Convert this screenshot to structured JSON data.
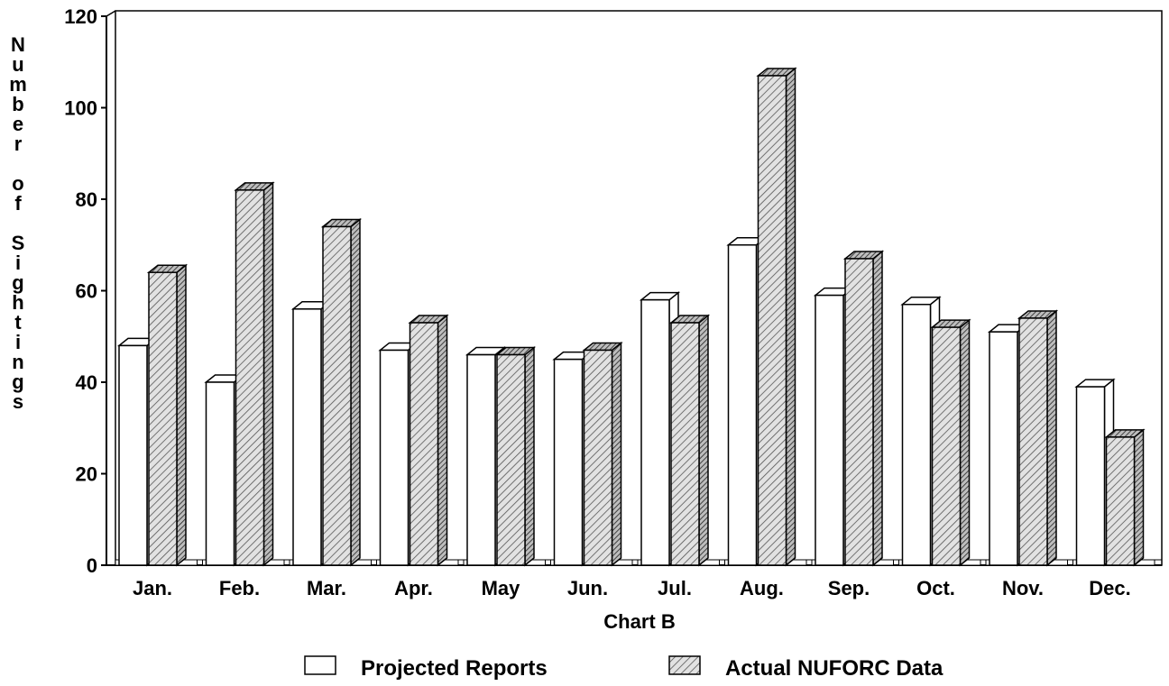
{
  "chart_data": {
    "type": "bar",
    "categories": [
      "Jan.",
      "Feb.",
      "Mar.",
      "Apr.",
      "May",
      "Jun.",
      "Jul.",
      "Aug.",
      "Sep.",
      "Oct.",
      "Nov.",
      "Dec."
    ],
    "series": [
      {
        "name": "Projected Reports",
        "values": [
          48,
          40,
          56,
          47,
          46,
          45,
          58,
          70,
          59,
          57,
          51,
          39
        ],
        "color": "#ffffff"
      },
      {
        "name": "Actual NUFORC Data",
        "values": [
          64,
          82,
          74,
          53,
          46,
          47,
          53,
          107,
          67,
          52,
          54,
          28
        ],
        "color": "#d8d8d8",
        "pattern": "hatched"
      }
    ],
    "title": "",
    "xlabel": "Chart B",
    "ylabel": "Number of Sightings",
    "yticks": [
      "0",
      "20",
      "40",
      "60",
      "80",
      "100",
      "120"
    ],
    "ylim": [
      0,
      120
    ],
    "grid": false,
    "legend_position": "bottom"
  }
}
